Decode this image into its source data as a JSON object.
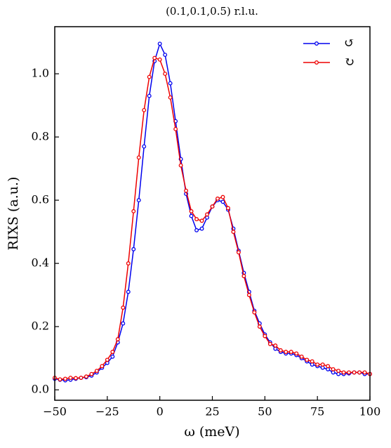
{
  "chart_data": {
    "type": "line",
    "title": "(0.1,0.1,0.5) r.l.u.",
    "xlabel": "ω (meV)",
    "ylabel": "RIXS (a.u.)",
    "x": [
      -50,
      -47.5,
      -45,
      -42.5,
      -40,
      -37.5,
      -35,
      -32.5,
      -30,
      -27.5,
      -25,
      -22.5,
      -20,
      -17.5,
      -15,
      -12.5,
      -10,
      -7.5,
      -5,
      -2.5,
      0,
      2.5,
      5,
      7.5,
      10,
      12.5,
      15,
      17.5,
      20,
      22.5,
      25,
      27.5,
      30,
      32.5,
      35,
      37.5,
      40,
      42.5,
      45,
      47.5,
      50,
      52.5,
      55,
      57.5,
      60,
      62.5,
      65,
      67.5,
      70,
      72.5,
      75,
      77.5,
      80,
      82.5,
      85,
      87.5,
      90,
      92.5,
      95,
      97.5,
      100
    ],
    "series": [
      {
        "name": "↺",
        "color": "#0000ee",
        "values": [
          0.035,
          0.032,
          0.03,
          0.032,
          0.035,
          0.038,
          0.04,
          0.045,
          0.055,
          0.07,
          0.085,
          0.105,
          0.15,
          0.21,
          0.31,
          0.445,
          0.6,
          0.77,
          0.93,
          1.04,
          1.095,
          1.06,
          0.97,
          0.85,
          0.73,
          0.62,
          0.55,
          0.505,
          0.51,
          0.545,
          0.58,
          0.6,
          0.595,
          0.57,
          0.51,
          0.44,
          0.37,
          0.31,
          0.25,
          0.21,
          0.175,
          0.15,
          0.13,
          0.12,
          0.115,
          0.115,
          0.11,
          0.1,
          0.09,
          0.08,
          0.075,
          0.07,
          0.065,
          0.055,
          0.05,
          0.05,
          0.052,
          0.055,
          0.055,
          0.05,
          0.05
        ]
      },
      {
        "name": "↻",
        "color": "#ee0000",
        "values": [
          0.038,
          0.033,
          0.035,
          0.038,
          0.037,
          0.038,
          0.042,
          0.05,
          0.06,
          0.075,
          0.095,
          0.12,
          0.16,
          0.26,
          0.4,
          0.565,
          0.735,
          0.885,
          0.99,
          1.05,
          1.045,
          1.0,
          0.925,
          0.825,
          0.71,
          0.63,
          0.565,
          0.54,
          0.535,
          0.555,
          0.58,
          0.605,
          0.61,
          0.575,
          0.5,
          0.435,
          0.36,
          0.3,
          0.245,
          0.2,
          0.17,
          0.145,
          0.14,
          0.125,
          0.12,
          0.12,
          0.115,
          0.105,
          0.095,
          0.09,
          0.08,
          0.08,
          0.075,
          0.065,
          0.06,
          0.055,
          0.055,
          0.055,
          0.055,
          0.055,
          0.05
        ]
      }
    ],
    "xlim": [
      -50,
      100
    ],
    "xticks": [
      {
        "value": -50,
        "label": "−50"
      },
      {
        "value": -25,
        "label": "−25"
      },
      0,
      25,
      50,
      75,
      100
    ],
    "ylim": [
      -0.033,
      1.149
    ],
    "yticks": [
      {
        "value": 0,
        "label": "0.0"
      },
      0.2,
      0.4,
      0.6,
      0.8,
      {
        "value": 1,
        "label": "1.0"
      }
    ],
    "legend": "upper right"
  }
}
